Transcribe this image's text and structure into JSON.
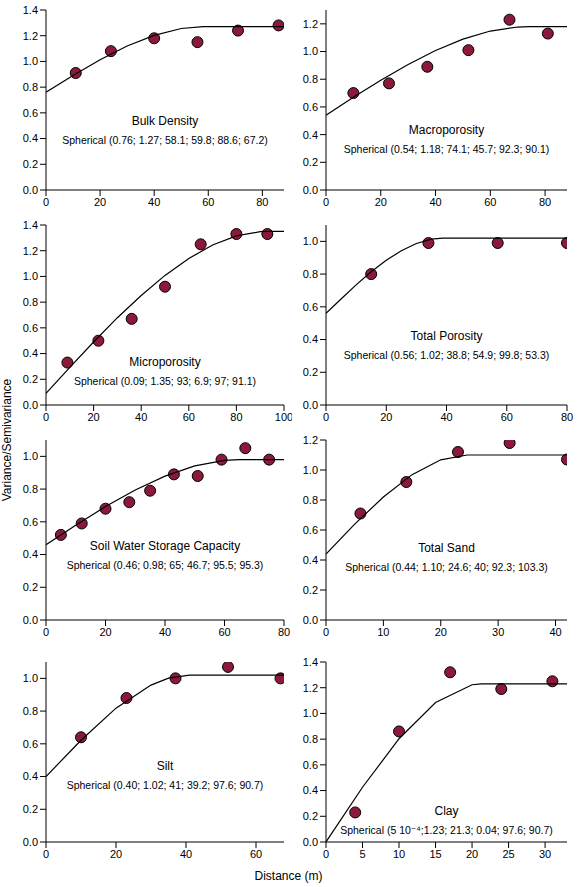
{
  "x_label": "Distance (m)",
  "y_label": "Variance/Semivariance",
  "chart_data": [
    {
      "type": "scatter",
      "title": "Bulk Density",
      "annotation": "Spherical (0.76; 1.27; 58.1; 59.8; 88.6; 67.2)",
      "xlim": [
        0,
        88
      ],
      "xticks": [
        0,
        20,
        40,
        60,
        80
      ],
      "ylim": [
        0,
        1.4
      ],
      "yticks": [
        {
          "value": 0,
          "label": "0.0"
        },
        0.2,
        0.4,
        0.6,
        0.8,
        {
          "value": 1,
          "label": "1.0"
        },
        1.2,
        1.4
      ],
      "series": [
        {
          "type": "scatter",
          "color": "#8b1a3a",
          "marker": "circle",
          "x": [
            11,
            24,
            40,
            56,
            71,
            86
          ],
          "values": [
            0.91,
            1.08,
            1.18,
            1.15,
            1.24,
            1.28
          ]
        },
        {
          "type": "line",
          "color": "#000000",
          "line_style": "solid",
          "x": [
            0,
            10,
            20,
            30,
            40,
            50,
            58.1,
            88
          ],
          "values": [
            0.76,
            0.89,
            1.013,
            1.12,
            1.203,
            1.256,
            1.27,
            1.27
          ]
        }
      ]
    },
    {
      "type": "scatter",
      "title": "Macroporosity",
      "annotation": "Spherical (0.54; 1.18; 74.1; 45.7; 92.3; 90.1)",
      "xlim": [
        0,
        88
      ],
      "xticks": [
        0,
        20,
        40,
        60,
        80
      ],
      "ylim": [
        0,
        1.3
      ],
      "yticks": [
        {
          "value": 0,
          "label": "0.0"
        },
        0.2,
        0.4,
        0.6,
        0.8,
        {
          "value": 1,
          "label": "1.0"
        },
        1.2
      ],
      "series": [
        {
          "type": "scatter",
          "color": "#8b1a3a",
          "marker": "circle",
          "x": [
            10,
            23,
            37,
            52,
            67,
            81
          ],
          "values": [
            0.7,
            0.77,
            0.89,
            1.01,
            1.23,
            1.13
          ]
        },
        {
          "type": "line",
          "color": "#000000",
          "line_style": "solid",
          "x": [
            0,
            10,
            20,
            30,
            40,
            50,
            60,
            70,
            74.1,
            88
          ],
          "values": [
            0.54,
            0.669,
            0.793,
            0.907,
            1.008,
            1.09,
            1.148,
            1.177,
            1.18,
            1.18
          ]
        }
      ]
    },
    {
      "type": "scatter",
      "title": "Microporosity",
      "annotation": "Spherical (0.09; 1.35; 93; 6.9; 97; 91.1)",
      "xlim": [
        0,
        100
      ],
      "xticks": [
        0,
        20,
        40,
        60,
        80,
        100
      ],
      "ylim": [
        0,
        1.4
      ],
      "yticks": [
        {
          "value": 0,
          "label": "0.0"
        },
        0.2,
        0.4,
        0.6,
        0.8,
        {
          "value": 1,
          "label": "1.0"
        },
        1.2,
        1.4
      ],
      "series": [
        {
          "type": "scatter",
          "color": "#8b1a3a",
          "marker": "circle",
          "x": [
            9,
            22,
            36,
            50,
            65,
            80,
            93
          ],
          "values": [
            0.33,
            0.5,
            0.67,
            0.92,
            1.25,
            1.33,
            1.33
          ]
        },
        {
          "type": "line",
          "color": "#000000",
          "line_style": "solid",
          "x": [
            0,
            10,
            20,
            30,
            40,
            50,
            60,
            70,
            80,
            90,
            93,
            100
          ],
          "values": [
            0.09,
            0.292,
            0.49,
            0.679,
            0.852,
            1.008,
            1.14,
            1.244,
            1.315,
            1.348,
            1.35,
            1.35
          ]
        }
      ]
    },
    {
      "type": "scatter",
      "title": "Total Porosity",
      "annotation": "Spherical (0.56; 1.02; 38.8; 54.9; 99.8; 53.3)",
      "xlim": [
        0,
        80
      ],
      "xticks": [
        0,
        20,
        40,
        60,
        80
      ],
      "ylim": [
        0,
        1.1
      ],
      "yticks": [
        {
          "value": 0,
          "label": "0.0"
        },
        0.2,
        0.4,
        0.6,
        0.8,
        {
          "value": 1,
          "label": "1.0"
        }
      ],
      "series": [
        {
          "type": "scatter",
          "color": "#8b1a3a",
          "marker": "circle",
          "x": [
            15,
            34,
            57,
            80
          ],
          "values": [
            0.8,
            0.99,
            0.99,
            0.99
          ]
        },
        {
          "type": "line",
          "color": "#000000",
          "line_style": "solid",
          "x": [
            0,
            5,
            10,
            15,
            20,
            25,
            30,
            35,
            38.8,
            80
          ],
          "values": [
            0.56,
            0.648,
            0.734,
            0.814,
            0.884,
            0.943,
            0.987,
            1.014,
            1.02,
            1.02
          ]
        }
      ]
    },
    {
      "type": "scatter",
      "title": "Soil Water Storage Capacity",
      "annotation": "Spherical (0.46; 0.98; 65; 46.7; 95.5; 95.3)",
      "xlim": [
        0,
        80
      ],
      "xticks": [
        0,
        20,
        40,
        60,
        80
      ],
      "ylim": [
        0,
        1.1
      ],
      "yticks": [
        {
          "value": 0,
          "label": "0.0"
        },
        0.2,
        0.4,
        0.6,
        0.8,
        {
          "value": 1,
          "label": "1.0"
        }
      ],
      "series": [
        {
          "type": "scatter",
          "color": "#8b1a3a",
          "marker": "circle",
          "x": [
            5,
            12,
            20,
            28,
            35,
            43,
            51,
            59,
            67,
            75
          ],
          "values": [
            0.52,
            0.59,
            0.68,
            0.72,
            0.79,
            0.89,
            0.88,
            0.98,
            1.05,
            0.98
          ]
        },
        {
          "type": "line",
          "color": "#000000",
          "line_style": "solid",
          "x": [
            0,
            10,
            20,
            30,
            40,
            50,
            60,
            65,
            80
          ],
          "values": [
            0.46,
            0.579,
            0.693,
            0.794,
            0.879,
            0.942,
            0.976,
            0.98,
            0.98
          ]
        }
      ]
    },
    {
      "type": "scatter",
      "title": "Total Sand",
      "annotation": "Spherical (0.44; 1.10; 24.6; 40; 92.3; 103.3)",
      "xlim": [
        0,
        42
      ],
      "xticks": [
        0,
        10,
        20,
        30,
        40
      ],
      "ylim": [
        0,
        1.2
      ],
      "yticks": [
        {
          "value": 0,
          "label": "0.0"
        },
        0.2,
        0.4,
        0.6,
        0.8,
        {
          "value": 1,
          "label": "1.0"
        },
        1.2
      ],
      "series": [
        {
          "type": "scatter",
          "color": "#8b1a3a",
          "marker": "circle",
          "x": [
            6,
            14,
            23,
            32,
            42
          ],
          "values": [
            0.71,
            0.92,
            1.12,
            1.18,
            1.07
          ]
        },
        {
          "type": "line",
          "color": "#000000",
          "line_style": "solid",
          "x": [
            0,
            5,
            10,
            15,
            20,
            24.6,
            42
          ],
          "values": [
            0.44,
            0.639,
            0.82,
            0.969,
            1.068,
            1.1,
            1.1
          ]
        }
      ]
    },
    {
      "type": "scatter",
      "title": "Silt",
      "annotation": "Spherical (0.40; 1.02; 41; 39.2; 97.6; 90.7)",
      "xlim": [
        0,
        68
      ],
      "xticks": [
        0,
        20,
        40,
        60
      ],
      "ylim": [
        0,
        1.1
      ],
      "yticks": [
        {
          "value": 0,
          "label": "0.0"
        },
        0.2,
        0.4,
        0.6,
        0.8,
        {
          "value": 1,
          "label": "1.0"
        }
      ],
      "series": [
        {
          "type": "scatter",
          "color": "#8b1a3a",
          "marker": "circle",
          "x": [
            10,
            23,
            37,
            52,
            67
          ],
          "values": [
            0.64,
            0.88,
            1.0,
            1.07,
            1.0
          ]
        },
        {
          "type": "line",
          "color": "#000000",
          "line_style": "solid",
          "x": [
            0,
            10,
            20,
            30,
            35,
            41,
            68
          ],
          "values": [
            0.4,
            0.622,
            0.818,
            0.959,
            1.001,
            1.02,
            1.02
          ]
        }
      ]
    },
    {
      "type": "scatter",
      "title": "Clay",
      "annotation": "Spherical (5 10⁻⁴;1.23; 21.3; 0.04; 97.6; 90.7)",
      "xlim": [
        0,
        33
      ],
      "xticks": [
        0,
        5,
        10,
        15,
        20,
        25,
        30
      ],
      "ylim": [
        0,
        1.4
      ],
      "yticks": [
        {
          "value": 0,
          "label": "0.0"
        },
        0.2,
        0.4,
        0.6,
        0.8,
        {
          "value": 1,
          "label": "1.0"
        },
        1.2,
        1.4
      ],
      "series": [
        {
          "type": "scatter",
          "color": "#8b1a3a",
          "marker": "circle",
          "x": [
            4,
            10,
            17,
            24,
            31
          ],
          "values": [
            0.23,
            0.86,
            1.32,
            1.19,
            1.25
          ]
        },
        {
          "type": "line",
          "color": "#000000",
          "line_style": "solid",
          "x": [
            0,
            5,
            10,
            15,
            20,
            21.3,
            33
          ],
          "values": [
            0.0005,
            0.426,
            0.803,
            1.085,
            1.223,
            1.23,
            1.23
          ]
        }
      ]
    }
  ]
}
